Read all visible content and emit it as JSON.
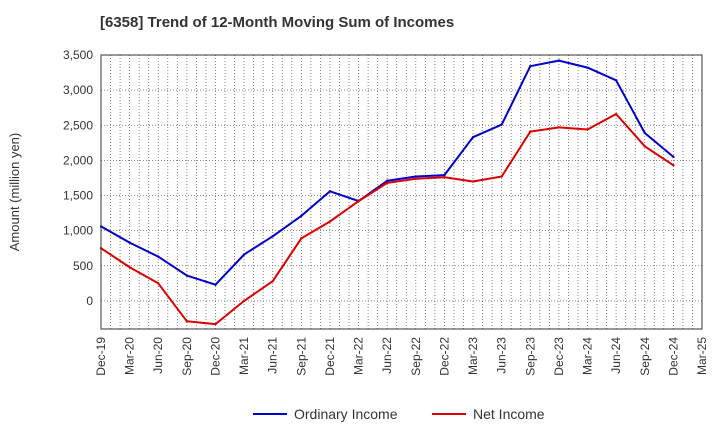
{
  "chart_data": {
    "type": "line",
    "title": "[6358]  Trend of 12-Month Moving Sum of Incomes",
    "xlabel": "",
    "ylabel": "Amount (million yen)",
    "ylim": [
      -400,
      3500
    ],
    "yticks": [
      0,
      500,
      1000,
      1500,
      2000,
      2500,
      3000,
      3500
    ],
    "ytick_labels": [
      "0",
      "500",
      "1,000",
      "1,500",
      "2,000",
      "2,500",
      "3,000",
      "3,500"
    ],
    "categories": [
      "Dec-19",
      "Mar-20",
      "Jun-20",
      "Sep-20",
      "Dec-20",
      "Mar-21",
      "Jun-21",
      "Sep-21",
      "Dec-21",
      "Mar-22",
      "Jun-22",
      "Sep-22",
      "Dec-22",
      "Mar-23",
      "Jun-23",
      "Sep-23",
      "Dec-23",
      "Mar-24",
      "Jun-24",
      "Sep-24",
      "Dec-24",
      "Mar-25"
    ],
    "grid": true,
    "legend_position": "bottom-center",
    "series": [
      {
        "name": "Ordinary Income",
        "color": "#0000cc",
        "values": [
          1060,
          830,
          630,
          360,
          230,
          660,
          920,
          1210,
          1560,
          1420,
          1710,
          1770,
          1790,
          2330,
          2510,
          3340,
          3420,
          3320,
          3140,
          2390,
          2050,
          null
        ]
      },
      {
        "name": "Net Income",
        "color": "#dd0000",
        "values": [
          750,
          480,
          250,
          -290,
          -330,
          0,
          280,
          890,
          1130,
          1420,
          1680,
          1740,
          1760,
          1700,
          1770,
          2410,
          2470,
          2440,
          2660,
          2200,
          1930,
          null
        ]
      }
    ]
  }
}
